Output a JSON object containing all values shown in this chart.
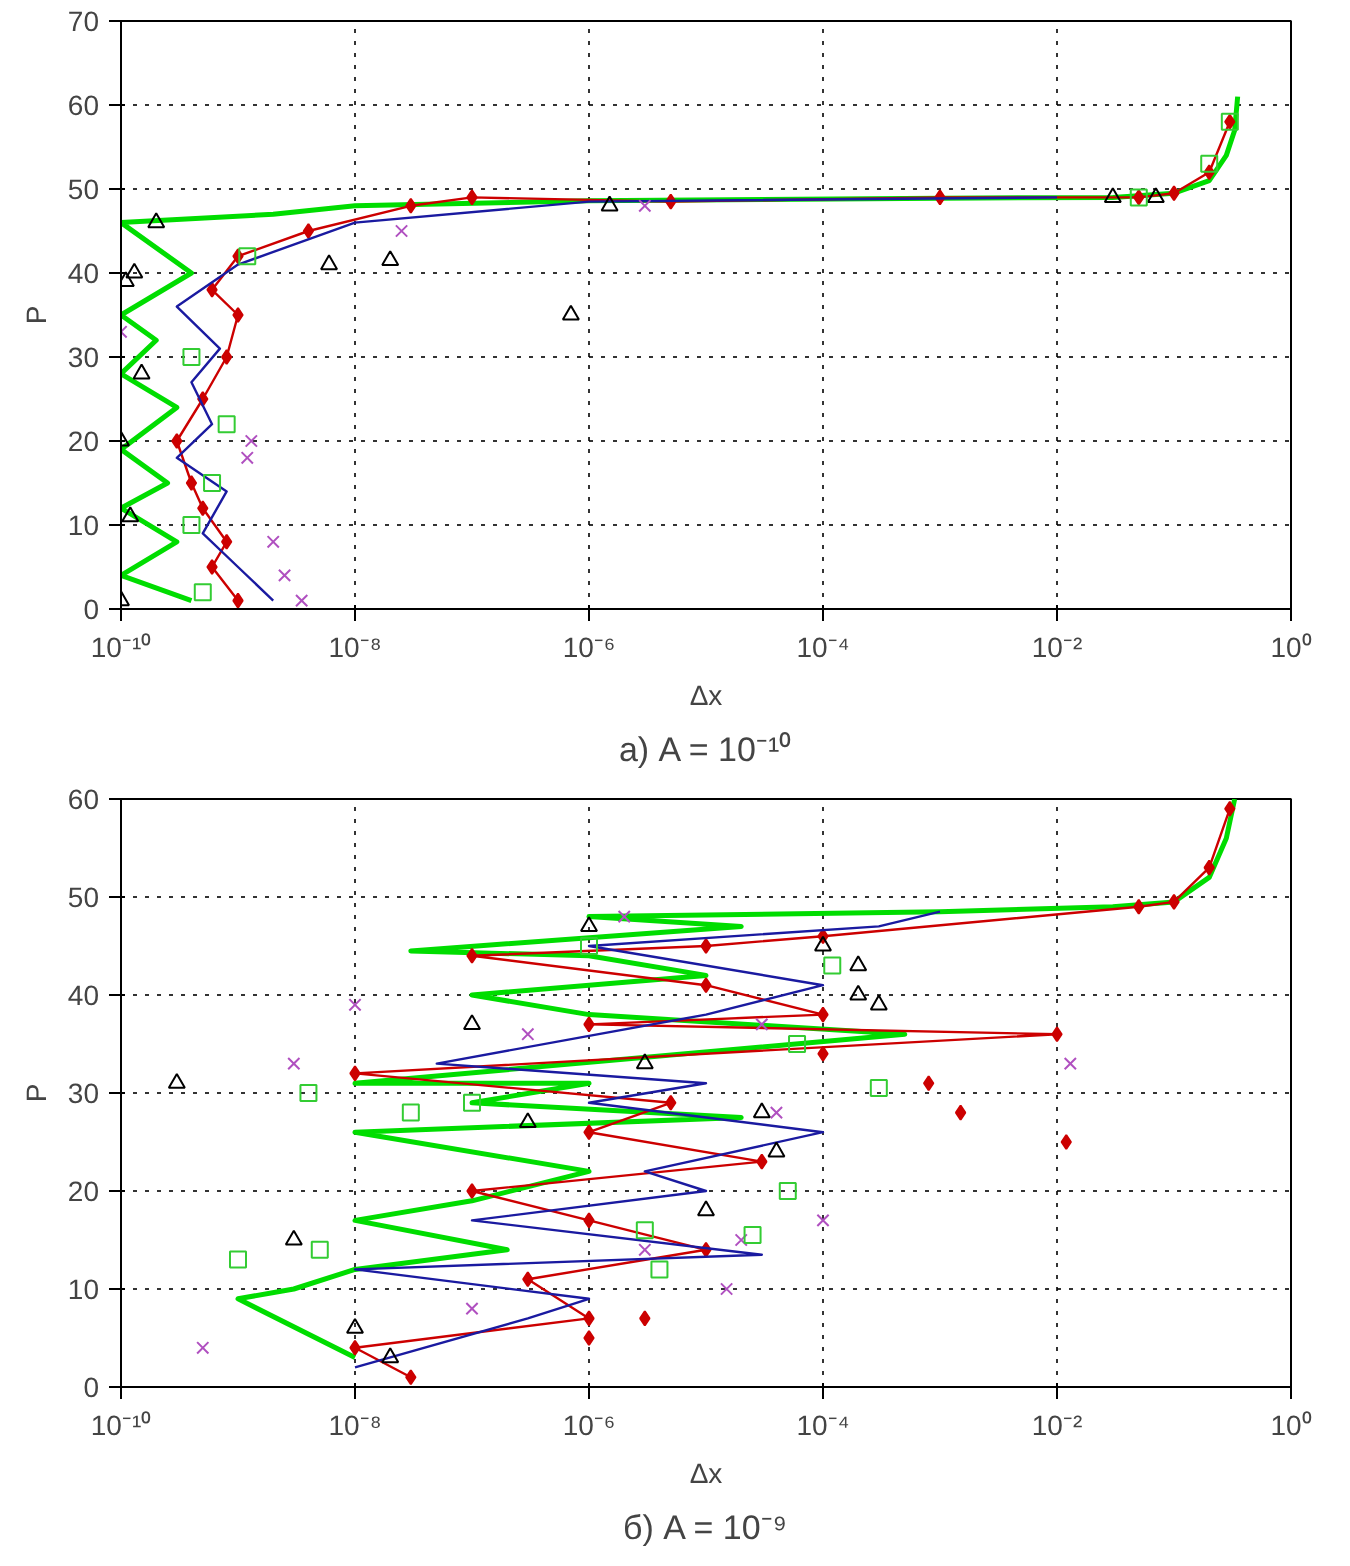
{
  "chart_data": [
    {
      "type": "line",
      "title": "а) A = 10⁻¹⁰",
      "xlabel": "Δx",
      "ylabel": "P",
      "log": "x",
      "grid": true,
      "xlim": [
        1e-10,
        1
      ],
      "ylim": [
        0,
        70
      ],
      "xticks": [
        {
          "value": 1e-10,
          "label": "10⁻¹⁰"
        },
        {
          "value": 1e-08,
          "label": "10⁻⁸"
        },
        {
          "value": 1e-06,
          "label": "10⁻⁶"
        },
        {
          "value": 0.0001,
          "label": "10⁻⁴"
        },
        {
          "value": 0.01,
          "label": "10⁻²"
        },
        {
          "value": 1,
          "label": "10⁰"
        }
      ],
      "yticks": [
        0,
        10,
        20,
        30,
        40,
        50,
        60,
        70
      ],
      "series": [
        {
          "color": "#00dd00",
          "marker": "none",
          "x": [
            4e-10,
            1e-10,
            3e-10,
            1e-10,
            2.5e-10,
            1e-10,
            3e-10,
            1e-10,
            2e-10,
            1e-10,
            4e-10,
            1e-10,
            2e-09,
            1e-08,
            1e-06,
            0.001,
            0.03,
            0.1,
            0.2,
            0.28,
            0.33,
            0.35
          ],
          "values": [
            1,
            4,
            8,
            12,
            15,
            19,
            24,
            28,
            32,
            35,
            40,
            46,
            47,
            48,
            48.6,
            48.9,
            49,
            49.5,
            51,
            54,
            57,
            61
          ]
        },
        {
          "color": "#cc0000",
          "marker": "diamond",
          "x": [
            1e-09,
            6e-10,
            8e-10,
            5e-10,
            4e-10,
            3e-10,
            5e-10,
            8e-10,
            1e-09,
            6e-10,
            1e-09,
            4e-09,
            3e-08,
            1e-07,
            5e-06,
            0.001,
            0.05,
            0.1,
            0.2,
            0.3
          ],
          "values": [
            1,
            5,
            8,
            12,
            15,
            20,
            25,
            30,
            35,
            38,
            42,
            45,
            48,
            49,
            48.5,
            49,
            49,
            49.5,
            52,
            58
          ]
        },
        {
          "color": "#1a1aa0",
          "marker": "none",
          "x": [
            2e-09,
            1e-09,
            5e-10,
            8e-10,
            3e-10,
            6e-10,
            4e-10,
            7e-10,
            3e-10,
            1e-09,
            1e-08,
            1e-06,
            0.01
          ],
          "values": [
            1,
            5,
            9,
            14,
            18,
            22,
            27,
            31,
            36,
            41,
            46,
            48.5,
            49
          ]
        },
        {
          "type": "scatter",
          "color": "#b050c0",
          "marker": "cross",
          "x": [
            3.5e-09,
            2.5e-09,
            2e-09,
            1.2e-09,
            1.3e-09,
            1e-10,
            2.5e-08,
            3e-06
          ],
          "values": [
            1,
            4,
            8,
            18,
            20,
            33,
            45,
            48
          ]
        },
        {
          "type": "scatter",
          "color": "#000000",
          "marker": "triangle",
          "x": [
            1e-10,
            1.2e-10,
            1e-10,
            1.5e-10,
            1.1e-10,
            1.3e-10,
            2e-10,
            6e-09,
            2e-08,
            7e-07,
            1.5e-06,
            0.03,
            0.07
          ],
          "values": [
            1,
            11,
            20,
            28,
            39,
            40,
            46,
            41,
            41.5,
            35,
            48,
            49,
            49
          ]
        },
        {
          "type": "scatter",
          "color": "#33cc33",
          "marker": "square",
          "x": [
            5e-10,
            4e-10,
            6e-10,
            8e-10,
            4e-10,
            1.2e-09,
            0.05,
            0.2,
            0.3
          ],
          "values": [
            2,
            10,
            15,
            22,
            30,
            42,
            49,
            53,
            58
          ]
        }
      ]
    },
    {
      "type": "line",
      "title": "б) A = 10⁻⁹",
      "xlabel": "Δx",
      "ylabel": "P",
      "log": "x",
      "grid": true,
      "xlim": [
        1e-10,
        1
      ],
      "ylim": [
        0,
        60
      ],
      "xticks": [
        {
          "value": 1e-10,
          "label": "10⁻¹⁰"
        },
        {
          "value": 1e-08,
          "label": "10⁻⁸"
        },
        {
          "value": 1e-06,
          "label": "10⁻⁶"
        },
        {
          "value": 0.0001,
          "label": "10⁻⁴"
        },
        {
          "value": 0.01,
          "label": "10⁻²"
        },
        {
          "value": 1,
          "label": "10⁰"
        }
      ],
      "yticks": [
        0,
        10,
        20,
        30,
        40,
        50,
        60
      ],
      "series": [
        {
          "color": "#00dd00",
          "marker": "none",
          "x": [
            1e-08,
            1e-09,
            3e-09,
            1e-08,
            2e-07,
            1e-08,
            1e-07,
            1e-06,
            1e-08,
            2e-05,
            1e-07,
            1e-06,
            1e-08,
            0.0005,
            1e-06,
            1e-07,
            1e-05,
            1e-06,
            3e-08,
            2e-05,
            1e-06,
            0.001,
            0.03,
            0.1,
            0.2,
            0.28,
            0.33
          ],
          "values": [
            3,
            9,
            10,
            12,
            14,
            17,
            19,
            22,
            26,
            27.5,
            29,
            31,
            31,
            36,
            38,
            40,
            42,
            44,
            44.5,
            47,
            48,
            48.5,
            49,
            49.5,
            52,
            56,
            60
          ]
        },
        {
          "color": "#cc0000",
          "marker": "diamond",
          "x": [
            3e-08,
            1e-08,
            1e-06,
            3e-07,
            1e-05,
            1e-06,
            1e-07,
            3e-05,
            1e-06,
            5e-06,
            1e-08,
            0.01,
            1e-06,
            0.0001,
            1e-05,
            1e-07,
            1e-05,
            0.0001,
            0.05,
            0.1,
            0.2,
            0.3
          ],
          "values": [
            1,
            4,
            7,
            11,
            14,
            17,
            20,
            23,
            26,
            29,
            32,
            36,
            37,
            38,
            41,
            44,
            45,
            46,
            49,
            49.5,
            53,
            59
          ]
        },
        {
          "type": "scatter",
          "color": "#cc0000",
          "marker": "diamond",
          "x": [
            0.0008,
            0.0015,
            0.012,
            0.0001,
            1e-06,
            3e-06
          ],
          "values": [
            31,
            28,
            25,
            34,
            5,
            7
          ]
        },
        {
          "color": "#1a1aa0",
          "marker": "none",
          "x": [
            1e-08,
            3e-07,
            1e-06,
            1e-08,
            3e-05,
            1e-07,
            1e-05,
            3e-06,
            0.0001,
            1e-06,
            1e-05,
            5e-08,
            1e-05,
            0.0001,
            1e-06,
            0.0003,
            0.001
          ],
          "values": [
            2,
            7,
            9,
            12,
            13.5,
            17,
            20,
            22,
            26,
            29,
            31,
            33,
            38,
            41,
            45,
            47,
            48.5
          ]
        },
        {
          "type": "scatter",
          "color": "#b050c0",
          "marker": "cross",
          "x": [
            5e-10,
            3e-09,
            1e-08,
            1e-07,
            3e-06,
            2e-05,
            0.0001,
            1.5e-05,
            4e-05,
            3e-07,
            3e-05,
            0.013,
            2e-06
          ],
          "values": [
            4,
            33,
            39,
            8,
            14,
            15,
            17,
            10,
            28,
            36,
            37,
            33,
            48
          ]
        },
        {
          "type": "scatter",
          "color": "#000000",
          "marker": "triangle",
          "x": [
            3e-10,
            3e-09,
            1e-08,
            2e-08,
            1e-07,
            3e-07,
            1e-06,
            3e-06,
            1e-05,
            3e-05,
            0.0002,
            0.0002,
            0.0003,
            4e-05,
            0.0001
          ],
          "values": [
            31,
            15,
            6,
            3,
            37,
            27,
            47,
            33,
            18,
            28,
            43,
            40,
            39,
            24,
            45
          ]
        },
        {
          "type": "scatter",
          "color": "#33cc33",
          "marker": "square",
          "x": [
            1e-09,
            4e-09,
            5e-09,
            3e-08,
            1e-07,
            3e-06,
            2.5e-05,
            5e-05,
            6e-05,
            0.0003,
            0.00012,
            1e-06,
            4e-06
          ],
          "values": [
            13,
            30,
            14,
            28,
            29,
            16,
            15.5,
            20,
            35,
            30.5,
            43,
            45,
            12
          ]
        }
      ]
    }
  ]
}
